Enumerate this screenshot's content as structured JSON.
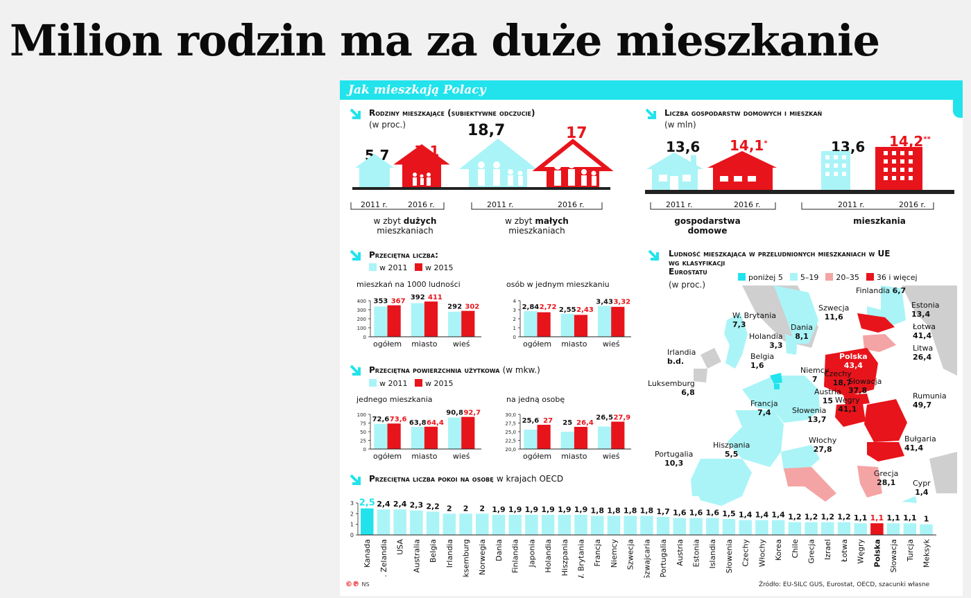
{
  "headline": "Milion rodzin ma za duże mieszkanie",
  "banner": "Jak mieszkają Polacy",
  "families": {
    "title": "Rodziny mieszkające (subiektywne odczucie)",
    "unit": "(w proc.)",
    "big": {
      "v2011": "5,7",
      "v2016": "7,1",
      "y1": "2011 r.",
      "y2": "2016 r.",
      "label1": "w zbyt ",
      "label_bold": "dużych",
      "label2": "mieszkaniach"
    },
    "small": {
      "v2011": "18,7",
      "v2016": "17",
      "y1": "2011 r.",
      "y2": "2016 r.",
      "label1": "w zbyt ",
      "label_bold": "małych",
      "label2": "mieszkaniach"
    }
  },
  "households": {
    "title": "Liczba gospodarstw domowych i mieszkań",
    "unit": "(w mln)",
    "hh": {
      "v2011": "13,6",
      "v2016": "14,1",
      "mark": "*",
      "y1": "2011 r.",
      "y2": "2016 r.",
      "label": "gospodarstwa domowe"
    },
    "flats": {
      "v2011": "13,6",
      "v2016": "14,2",
      "mark": "**",
      "y1": "2011 r.",
      "y2": "2016 r.",
      "label": "mieszkania"
    }
  },
  "average": {
    "title": "Przeciętna liczba:",
    "legend1": "w 2011",
    "legend2": "w 2015",
    "chart1_title": "mieszkań na 1000 ludności",
    "chart2_title": "osób w jednym mieszkaniu"
  },
  "area": {
    "title": "Przeciętna powierzchnia użytkowa",
    "unit": "(w mkw.)",
    "legend1": "w 2011",
    "legend2": "w 2015",
    "chart1_title": "jednego mieszkania",
    "chart2_title": "na jedną osobę"
  },
  "eu": {
    "title1": "Ludność mieszkająca w przeludnionych mieszkaniach w UE",
    "title2": "wg klasyfikacji",
    "title3": "Eurostatu",
    "unit": "(w proc.)",
    "legend": [
      {
        "label": "poniżej 5",
        "color": "#22e3ec"
      },
      {
        "label": "5–19",
        "color": "#aaf4f7"
      },
      {
        "label": "20–35",
        "color": "#f4a4a4"
      },
      {
        "label": "36 i więcej",
        "color": "#e8141b"
      }
    ],
    "countries": [
      {
        "name": "Finlandia",
        "value": "6,7"
      },
      {
        "name": "Szwecja",
        "value": "11,6"
      },
      {
        "name": "Estonia",
        "value": "13,4"
      },
      {
        "name": "Łotwa",
        "value": "41,4"
      },
      {
        "name": "Litwa",
        "value": "26,4"
      },
      {
        "name": "W. Brytania",
        "value": "7,3"
      },
      {
        "name": "Dania",
        "value": "8,1"
      },
      {
        "name": "Holandia",
        "value": "3,3"
      },
      {
        "name": "Irlandia",
        "value": "b.d."
      },
      {
        "name": "Belgia",
        "value": "1,6"
      },
      {
        "name": "Polska",
        "value": "43,4"
      },
      {
        "name": "Niemcy",
        "value": "7"
      },
      {
        "name": "Czechy",
        "value": "18,7"
      },
      {
        "name": "Słowacja",
        "value": "37,8"
      },
      {
        "name": "Luksemburg",
        "value": "6,8"
      },
      {
        "name": "Austria",
        "value": "15"
      },
      {
        "name": "Węgry",
        "value": "41,1"
      },
      {
        "name": "Rumunia",
        "value": "49,7"
      },
      {
        "name": "Francja",
        "value": "7,4"
      },
      {
        "name": "Słowenia",
        "value": "13,7"
      },
      {
        "name": "Bułgaria",
        "value": "41,4"
      },
      {
        "name": "Włochy",
        "value": "27,8"
      },
      {
        "name": "Hiszpania",
        "value": "5,5"
      },
      {
        "name": "Portugalia",
        "value": "10,3"
      },
      {
        "name": "Grecja",
        "value": "28,1"
      },
      {
        "name": "Cypr",
        "value": "1,4"
      }
    ]
  },
  "rooms": {
    "title": "Przeciętna liczba pokoi na osobę",
    "unit": "w krajach OECD"
  },
  "footer": {
    "source": "Źródło: EU-SILC GUS, Eurostat, OECD, szacunki własne",
    "initials": "NS"
  },
  "colors": {
    "cyan": "#22e3ec",
    "light_cyan": "#aaf4f7",
    "red": "#e8141b",
    "pink": "#f4a4a4",
    "grey": "#c8c8c8"
  },
  "chart_data": [
    {
      "type": "bar",
      "title": "mieszkań na 1000 ludności",
      "categories": [
        "ogółem",
        "miasto",
        "wieś"
      ],
      "series": [
        {
          "name": "w 2011",
          "values": [
            353,
            392,
            292
          ]
        },
        {
          "name": "w 2015",
          "values": [
            367,
            411,
            302
          ]
        }
      ],
      "labels2011": [
        "353",
        "392",
        "292"
      ],
      "labels2015": [
        "367",
        "411",
        "302"
      ],
      "yticks": [
        "400",
        "300",
        "200",
        "100",
        "0"
      ],
      "ylim": [
        0,
        420
      ]
    },
    {
      "type": "bar",
      "title": "osób w jednym mieszkaniu",
      "categories": [
        "ogółem",
        "miasto",
        "wieś"
      ],
      "series": [
        {
          "name": "w 2011",
          "values": [
            2.84,
            2.55,
            3.43
          ]
        },
        {
          "name": "w 2015",
          "values": [
            2.72,
            2.43,
            3.32
          ]
        }
      ],
      "labels2011": [
        "2,84",
        "2,55",
        "3,43"
      ],
      "labels2015": [
        "2,72",
        "2,43",
        "3,32"
      ],
      "yticks": [
        "4",
        "3",
        "2",
        "1",
        "0"
      ],
      "ylim": [
        0,
        4
      ]
    },
    {
      "type": "bar",
      "title": "jednego mieszkania",
      "categories": [
        "ogółem",
        "miasto",
        "wieś"
      ],
      "series": [
        {
          "name": "w 2011",
          "values": [
            72.6,
            63.8,
            90.8
          ]
        },
        {
          "name": "w 2015",
          "values": [
            73.6,
            64.4,
            92.7
          ]
        }
      ],
      "labels2011": [
        "72,6",
        "63,8",
        "90,8"
      ],
      "labels2015": [
        "73,6",
        "64,4",
        "92,7"
      ],
      "yticks": [
        "100",
        "75",
        "50",
        "25",
        "0"
      ],
      "ylim": [
        0,
        100
      ]
    },
    {
      "type": "bar",
      "title": "na jedną osobę",
      "categories": [
        "ogółem",
        "miasto",
        "wieś"
      ],
      "series": [
        {
          "name": "w 2011",
          "values": [
            25.6,
            25,
            26.5
          ]
        },
        {
          "name": "w 2015",
          "values": [
            27,
            26.4,
            27.9
          ]
        }
      ],
      "labels2011": [
        "25,6",
        "25",
        "26,5"
      ],
      "labels2015": [
        "27",
        "26,4",
        "27,9"
      ],
      "yticks": [
        "30,0",
        "27,5",
        "25,0",
        "22,5",
        "20,0"
      ],
      "ylim": [
        20,
        30
      ]
    },
    {
      "type": "bar",
      "title": "Przeciętna liczba pokoi na osobę",
      "categories": [
        "Kanada",
        "N. Zelandia",
        "USA",
        "Australia",
        "Belgia",
        "Irlandia",
        "Luksemburg",
        "Norwegia",
        "Dania",
        "Finlandia",
        "Japonia",
        "Holandia",
        "Hiszpania",
        "W. Brytania",
        "Francja",
        "Niemcy",
        "Szwecja",
        "Szwajcaria",
        "Portugalia",
        "Austria",
        "Estonia",
        "Islandia",
        "Słowenia",
        "Czechy",
        "Włochy",
        "Korea",
        "Chile",
        "Grecja",
        "Izrael",
        "Łotwa",
        "Węgry",
        "Polska",
        "Słowacja",
        "Turcja",
        "Meksyk"
      ],
      "values": [
        2.5,
        2.4,
        2.4,
        2.3,
        2.2,
        2,
        2,
        2,
        1.9,
        1.9,
        1.9,
        1.9,
        1.9,
        1.9,
        1.8,
        1.8,
        1.8,
        1.8,
        1.7,
        1.6,
        1.6,
        1.6,
        1.5,
        1.4,
        1.4,
        1.4,
        1.2,
        1.2,
        1.2,
        1.2,
        1.1,
        1.1,
        1.1,
        1.1,
        1
      ],
      "labels": [
        "2,5",
        "2,4",
        "2,4",
        "2,3",
        "2,2",
        "2",
        "2",
        "2",
        "1,9",
        "1,9",
        "1,9",
        "1,9",
        "1,9",
        "1,9",
        "1,8",
        "1,8",
        "1,8",
        "1,8",
        "1,7",
        "1,6",
        "1,6",
        "1,6",
        "1,5",
        "1,4",
        "1,4",
        "1,4",
        "1,2",
        "1,2",
        "1,2",
        "1,2",
        "1,1",
        "1,1",
        "1,1",
        "1,1",
        "1"
      ],
      "yticks": [
        "3",
        "2",
        "1",
        "0"
      ],
      "ylim": [
        0,
        3
      ]
    }
  ]
}
